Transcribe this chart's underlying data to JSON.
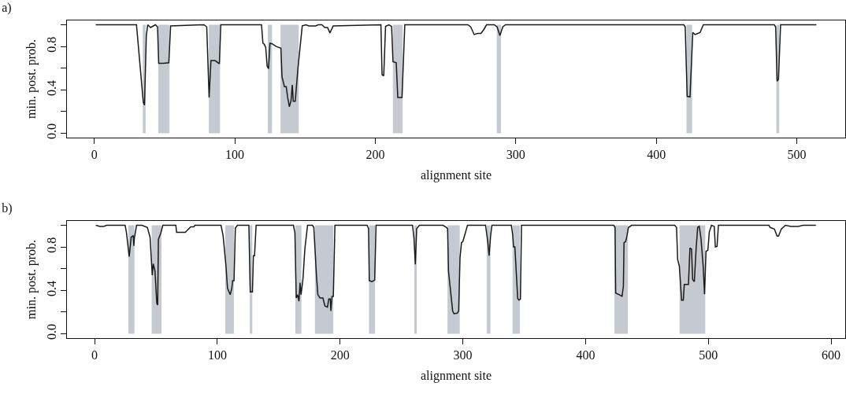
{
  "chart_data": [
    {
      "type": "line",
      "title": "a)",
      "xlabel": "alignment site",
      "ylabel": "min. post. prob.",
      "xlim": [
        -19.5,
        534.5
      ],
      "xticks": [
        0,
        100,
        200,
        300,
        400,
        500
      ],
      "ylim": [
        -0.04,
        1.04
      ],
      "yticks": [
        {
          "value": 0,
          "label": "0.0"
        },
        {
          "value": 0.2,
          "label": null
        },
        {
          "value": 0.4,
          "label": "0.4"
        },
        {
          "value": 0.6,
          "label": null
        },
        {
          "value": 0.8,
          "label": "0.8"
        },
        {
          "value": 1,
          "label": null
        }
      ],
      "grid": false,
      "series": [
        {
          "color": "#1a1a1a",
          "x": [
            1,
            30,
            34.8,
            35.7,
            37,
            38,
            40,
            43.5,
            45,
            45.8,
            49.3,
            53,
            54.3,
            78,
            80,
            81.7,
            83,
            86,
            89,
            90,
            119,
            120,
            121,
            122,
            123,
            124,
            125,
            126.6,
            129.5,
            132.8,
            133.6,
            135.3,
            136.6,
            137.6,
            138.8,
            140,
            140.9,
            141.6,
            143,
            145,
            148,
            150.7,
            152.6,
            157.5,
            159.4,
            162,
            164,
            166,
            167.7,
            170,
            204,
            204.8,
            206,
            207.3,
            209.7,
            211.6,
            212.6,
            214.9,
            216,
            219,
            221,
            265.9,
            267.9,
            270.4,
            272.8,
            275.2,
            277.2,
            279.2,
            284.7,
            286.7,
            288.7,
            290.7,
            292.7,
            419.6,
            420.6,
            422,
            424,
            426,
            427.6,
            429.6,
            431.2,
            433.5,
            484,
            485,
            486,
            487,
            488.5,
            514
          ],
          "values": [
            1,
            1,
            0.29,
            0.26,
            0.9,
            1,
            0.975,
            1,
            0.98,
            0.645,
            0.645,
            0.65,
            0.99,
            1,
            0.98,
            0.33,
            0.67,
            0.67,
            0.64,
            1,
            1,
            0.83,
            0.82,
            0.79,
            0.62,
            0.595,
            0.83,
            0.825,
            0.8,
            0.785,
            0.52,
            0.43,
            0.43,
            0.33,
            0.245,
            0.3,
            0.445,
            0.295,
            0.295,
            0.61,
            0.99,
            1,
            0.99,
            0.99,
            1,
            1,
            0.975,
            0.975,
            0.925,
            0.99,
            1,
            0.54,
            0.53,
            0.985,
            1,
            0.985,
            0.66,
            0.65,
            0.33,
            0.33,
            1,
            1,
            0.98,
            0.91,
            0.92,
            0.92,
            0.955,
            1,
            1,
            0.98,
            0.9,
            0.98,
            1,
            1,
            0.98,
            0.34,
            0.335,
            0.93,
            0.91,
            0.92,
            0.93,
            1,
            1,
            0.98,
            0.48,
            0.5,
            1,
            1
          ]
        }
      ],
      "bands": [
        {
          "axis": "x",
          "from": 34.5,
          "to": 36.5,
          "color": "#c5cad1"
        },
        {
          "axis": "x",
          "from": 45.5,
          "to": 53.5,
          "color": "#c5cad1"
        },
        {
          "axis": "x",
          "from": 81.5,
          "to": 89.5,
          "color": "#c5cad1"
        },
        {
          "axis": "x",
          "from": 123.5,
          "to": 126.5,
          "color": "#c5cad1"
        },
        {
          "axis": "x",
          "from": 132.5,
          "to": 145.5,
          "color": "#c5cad1"
        },
        {
          "axis": "x",
          "from": 212.5,
          "to": 219.5,
          "color": "#c5cad1"
        },
        {
          "axis": "x",
          "from": 286.5,
          "to": 289.5,
          "color": "#c5cad1"
        },
        {
          "axis": "x",
          "from": 421.5,
          "to": 425.5,
          "color": "#c5cad1"
        },
        {
          "axis": "x",
          "from": 485.5,
          "to": 487.5,
          "color": "#c5cad1"
        }
      ]
    },
    {
      "type": "line",
      "title": "b)",
      "xlabel": "alignment site",
      "ylabel": "min. post. prob.",
      "xlim": [
        -22.5,
        611.5
      ],
      "xticks": [
        0,
        100,
        200,
        300,
        400,
        500,
        600
      ],
      "ylim": [
        -0.04,
        1.04
      ],
      "yticks": [
        {
          "value": 0,
          "label": "0.0"
        },
        {
          "value": 0.2,
          "label": null
        },
        {
          "value": 0.4,
          "label": "0.4"
        },
        {
          "value": 0.6,
          "label": null
        },
        {
          "value": 0.8,
          "label": "0.8"
        },
        {
          "value": 1,
          "label": null
        }
      ],
      "grid": false,
      "series": [
        {
          "color": "#1a1a1a",
          "x": [
            1,
            4.4,
            7.3,
            9.9,
            24.9,
            26,
            28.2,
            29.8,
            31.5,
            32,
            32.4,
            34.2,
            38.6,
            43,
            45.2,
            47,
            47.8,
            49.2,
            50.7,
            51.4,
            52,
            54,
            55.6,
            66.2,
            66.8,
            73.9,
            78.3,
            80.9,
            81.8,
            103,
            104.7,
            107,
            108.3,
            110.5,
            111.8,
            112.5,
            113.6,
            114.7,
            116.4,
            125.7,
            126.8,
            128.6,
            129.4,
            130.3,
            131.6,
            162,
            163.2,
            164.3,
            165.4,
            166.5,
            167.4,
            168.2,
            169.8,
            171.3,
            173.5,
            177.5,
            178.6,
            180.8,
            181.9,
            183.7,
            186,
            187.7,
            189.7,
            190.8,
            192,
            192.5,
            193.4,
            194.5,
            195.8,
            222,
            223.2,
            223.8,
            226,
            228.2,
            229.3,
            259,
            260.2,
            261.3,
            262.4,
            264.6,
            283.8,
            286,
            287.6,
            288.3,
            289.8,
            291.7,
            292.8,
            295.5,
            296.6,
            297.7,
            298.9,
            300,
            301.8,
            303.8,
            318.5,
            320.3,
            321.4,
            322.6,
            323.7,
            339.5,
            340.6,
            341.3,
            342.4,
            344.7,
            345.8,
            346.9,
            347.8,
            422.9,
            424,
            424.5,
            427.5,
            429.7,
            430.8,
            431.3,
            432.6,
            433.5,
            434.9,
            437.6,
            472.6,
            474.1,
            475,
            476.4,
            478.2,
            479.6,
            480.4,
            483.8,
            485,
            486.3,
            487.2,
            488.6,
            490,
            491.3,
            492.6,
            494,
            495.8,
            496.9,
            498.1,
            499.6,
            500.8,
            502.6,
            504.8,
            505.7,
            507.1,
            508.2,
            549.3,
            550.4,
            553.8,
            556,
            557.2,
            559.4,
            562.8,
            567.3,
            573,
            577.5,
            587.6
          ],
          "values": [
            1,
            0.99,
            0.99,
            1,
            1,
            0.93,
            0.71,
            0.89,
            0.905,
            0.81,
            0.88,
            1,
            1,
            0.98,
            0.89,
            0.54,
            0.645,
            0.58,
            0.28,
            0.265,
            0.87,
            0.93,
            1,
            1,
            0.935,
            0.935,
            0.985,
            0.985,
            1,
            1,
            0.905,
            0.63,
            0.42,
            0.36,
            0.42,
            0.49,
            0.49,
            0.975,
            1,
            1,
            0.385,
            0.385,
            0.72,
            0.72,
            1,
            1,
            0.93,
            0.33,
            0.36,
            0.3,
            0.47,
            0.36,
            0.51,
            0.78,
            1,
            1,
            0.98,
            0.53,
            0.36,
            0.33,
            0.33,
            0.255,
            0.245,
            0.32,
            0.32,
            0.21,
            0.345,
            0.345,
            1,
            1,
            0.97,
            0.49,
            0.48,
            0.495,
            1,
            1,
            0.88,
            0.64,
            0.97,
            1,
            1,
            0.985,
            0.97,
            0.58,
            0.415,
            0.21,
            0.185,
            0.19,
            0.21,
            0.7,
            0.84,
            0.85,
            0.92,
            1,
            1,
            0.85,
            0.72,
            0.9,
            1,
            1,
            0.915,
            0.8,
            0.8,
            0.325,
            0.31,
            0.32,
            1,
            1,
            0.98,
            0.375,
            0.36,
            0.345,
            0.44,
            0.84,
            0.85,
            0.89,
            0.98,
            1,
            1,
            0.98,
            0.685,
            0.62,
            0.31,
            0.31,
            0.455,
            0.455,
            0.79,
            0.78,
            0.5,
            0.48,
            0.775,
            0.98,
            0.99,
            0.88,
            0.62,
            0.365,
            0.76,
            0.77,
            0.94,
            1,
            0.99,
            0.8,
            0.805,
            1,
            1,
            0.98,
            0.965,
            0.9,
            0.9,
            0.965,
            1,
            0.99,
            0.99,
            1,
            1
          ]
        }
      ],
      "bands": [
        {
          "axis": "x",
          "from": 27.5,
          "to": 32.5,
          "color": "#c5cad1"
        },
        {
          "axis": "x",
          "from": 46.5,
          "to": 54.5,
          "color": "#c5cad1"
        },
        {
          "axis": "x",
          "from": 106.5,
          "to": 113.5,
          "color": "#c5cad1"
        },
        {
          "axis": "x",
          "from": 126.5,
          "to": 128.5,
          "color": "#c5cad1"
        },
        {
          "axis": "x",
          "from": 163.5,
          "to": 168.5,
          "color": "#c5cad1"
        },
        {
          "axis": "x",
          "from": 179.5,
          "to": 194.5,
          "color": "#c5cad1"
        },
        {
          "axis": "x",
          "from": 223.5,
          "to": 228.5,
          "color": "#c5cad1"
        },
        {
          "axis": "x",
          "from": 260.5,
          "to": 262.5,
          "color": "#c5cad1"
        },
        {
          "axis": "x",
          "from": 287.5,
          "to": 297.5,
          "color": "#c5cad1"
        },
        {
          "axis": "x",
          "from": 319.5,
          "to": 322.5,
          "color": "#c5cad1"
        },
        {
          "axis": "x",
          "from": 340.5,
          "to": 346.5,
          "color": "#c5cad1"
        },
        {
          "axis": "x",
          "from": 423.5,
          "to": 434.5,
          "color": "#c5cad1"
        },
        {
          "axis": "x",
          "from": 476.5,
          "to": 497.5,
          "color": "#c5cad1"
        }
      ]
    }
  ]
}
